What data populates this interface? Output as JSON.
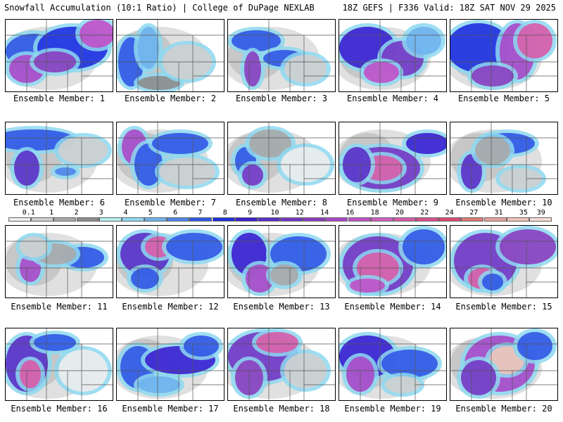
{
  "header": {
    "left": "Snowfall Accumulation (10:1 Ratio) | College of DuPage NEXLAB",
    "right": "18Z GEFS | F336 Valid: 18Z SAT NOV 29 2025"
  },
  "panels": [
    {
      "label": "Ensemble Member: 1"
    },
    {
      "label": "Ensemble Member: 2"
    },
    {
      "label": "Ensemble Member: 3"
    },
    {
      "label": "Ensemble Member: 4"
    },
    {
      "label": "Ensemble Member: 5"
    },
    {
      "label": "Ensemble Member: 6"
    },
    {
      "label": "Ensemble Member: 7"
    },
    {
      "label": "Ensemble Member: 8"
    },
    {
      "label": "Ensemble Member: 9"
    },
    {
      "label": "Ensemble Member: 10"
    },
    {
      "label": "Ensemble Member: 11"
    },
    {
      "label": "Ensemble Member: 12"
    },
    {
      "label": "Ensemble Member: 13"
    },
    {
      "label": "Ensemble Member: 14"
    },
    {
      "label": "Ensemble Member: 15"
    },
    {
      "label": "Ensemble Member: 16"
    },
    {
      "label": "Ensemble Member: 17"
    },
    {
      "label": "Ensemble Member: 18"
    },
    {
      "label": "Ensemble Member: 19"
    },
    {
      "label": "Ensemble Member: 20"
    }
  ],
  "colorbar": {
    "labels": [
      "0.1",
      "1",
      "2",
      "3",
      "4",
      "5",
      "6",
      "7",
      "8",
      "9",
      "10",
      "12",
      "14",
      "16",
      "18",
      "20",
      "22",
      "24",
      "27",
      "31",
      "35",
      "39"
    ],
    "colors": [
      "#ededed",
      "#cfcfcf",
      "#a9a9a9",
      "#8c8c8c",
      "#b5f0f0",
      "#8ed8f0",
      "#6fb2ee",
      "#4f84ea",
      "#3057e6",
      "#1f2fe0",
      "#3a1fd0",
      "#5a2fc8",
      "#7436c4",
      "#8a3ebf",
      "#a848c8",
      "#c050c8",
      "#d060c0",
      "#d85aa8",
      "#d8508e",
      "#d84c74",
      "#e07a7a",
      "#eaa0a0",
      "#f0c2b8",
      "#f6dcd4"
    ]
  }
}
